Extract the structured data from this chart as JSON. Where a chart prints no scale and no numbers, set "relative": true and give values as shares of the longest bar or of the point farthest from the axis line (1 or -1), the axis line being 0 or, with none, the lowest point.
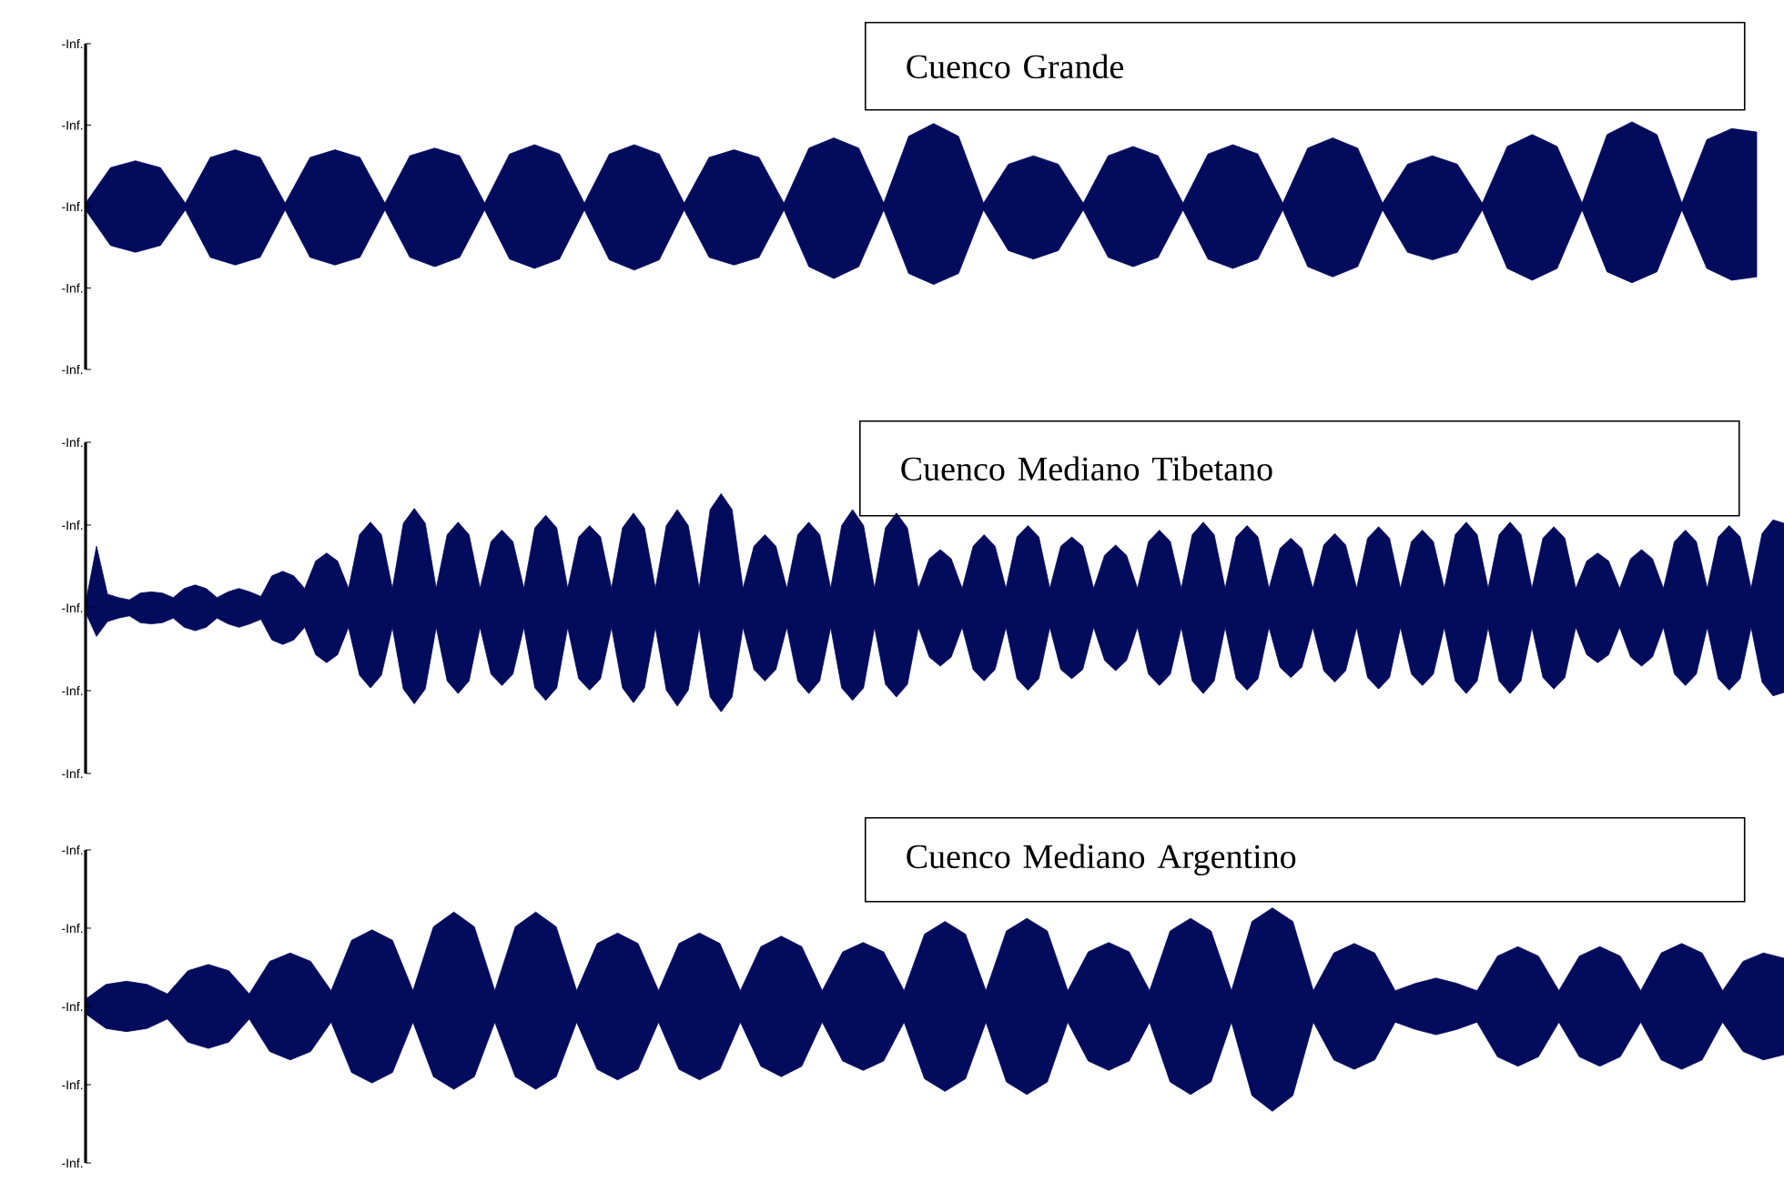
{
  "chart_data": [
    {
      "type": "area",
      "title": "Cuenco Grande",
      "relative": true,
      "annotations": [
        "-Inf.",
        "-Inf.",
        "-Inf.",
        "-Inf.",
        "-Inf."
      ],
      "categories": [
        null,
        null,
        null,
        null,
        null,
        null,
        null,
        null,
        null,
        null,
        null,
        null,
        null,
        null,
        null,
        null,
        null,
        null,
        null,
        null,
        null,
        null,
        null,
        null,
        null,
        null,
        null,
        null,
        null,
        null,
        null,
        null,
        null,
        null,
        null,
        null,
        null,
        null,
        null,
        null,
        null,
        null,
        null,
        null,
        null,
        null,
        null,
        null,
        null,
        null,
        null,
        null,
        null,
        null,
        null,
        null,
        null,
        null,
        null,
        null,
        null,
        null,
        null,
        null,
        null,
        null,
        null,
        null
      ],
      "series": [
        {
          "color": "#030b5c",
          "values": [
            0.04,
            0.46,
            0.54,
            0.46,
            0.04,
            0.58,
            0.67,
            0.58,
            0.04,
            0.58,
            0.67,
            0.58,
            0.04,
            0.6,
            0.69,
            0.6,
            0.04,
            0.62,
            0.73,
            0.62,
            0.04,
            0.62,
            0.73,
            0.62,
            0.04,
            0.58,
            0.67,
            0.58,
            0.04,
            0.69,
            0.81,
            0.69,
            0.04,
            0.83,
            0.98,
            0.83,
            0.04,
            0.5,
            0.6,
            0.5,
            0.04,
            0.6,
            0.71,
            0.6,
            0.04,
            0.62,
            0.73,
            0.62,
            0.04,
            0.69,
            0.81,
            0.69,
            0.04,
            0.5,
            0.6,
            0.5,
            0.04,
            0.71,
            0.85,
            0.71,
            0.04,
            0.85,
            1,
            0.85,
            0.04,
            0.79,
            0.92,
            0.88
          ]
        },
        {
          "color": "#030b5c",
          "values": [
            -0.04,
            -0.46,
            -0.54,
            -0.46,
            -0.04,
            -0.6,
            -0.69,
            -0.6,
            -0.04,
            -0.6,
            -0.69,
            -0.6,
            -0.04,
            -0.6,
            -0.71,
            -0.6,
            -0.04,
            -0.62,
            -0.73,
            -0.62,
            -0.04,
            -0.63,
            -0.75,
            -0.63,
            -0.04,
            -0.6,
            -0.69,
            -0.6,
            -0.04,
            -0.71,
            -0.85,
            -0.71,
            -0.04,
            -0.79,
            -0.92,
            -0.79,
            -0.04,
            -0.52,
            -0.62,
            -0.52,
            -0.04,
            -0.6,
            -0.71,
            -0.6,
            -0.04,
            -0.62,
            -0.73,
            -0.62,
            -0.04,
            -0.71,
            -0.83,
            -0.71,
            -0.04,
            -0.54,
            -0.63,
            -0.54,
            -0.04,
            -0.73,
            -0.87,
            -0.73,
            -0.04,
            -0.77,
            -0.9,
            -0.77,
            -0.04,
            -0.73,
            -0.87,
            -0.83
          ]
        }
      ]
    },
    {
      "type": "area",
      "title": "Cuenco Mediano Tibetano",
      "relative": true,
      "annotations": [
        "-Inf.",
        "-Inf.",
        "-Inf.",
        "-Inf.",
        "-Inf."
      ],
      "categories": [
        null,
        null,
        null,
        null,
        null,
        null,
        null,
        null,
        null,
        null,
        null,
        null,
        null,
        null,
        null,
        null,
        null,
        null,
        null,
        null,
        null,
        null,
        null,
        null,
        null,
        null,
        null,
        null,
        null,
        null,
        null,
        null,
        null,
        null,
        null,
        null,
        null,
        null,
        null,
        null,
        null,
        null,
        null,
        null,
        null,
        null,
        null,
        null,
        null,
        null,
        null,
        null,
        null,
        null,
        null,
        null,
        null,
        null,
        null,
        null,
        null,
        null,
        null,
        null,
        null,
        null,
        null,
        null,
        null,
        null,
        null,
        null,
        null,
        null,
        null,
        null,
        null,
        null,
        null,
        null,
        null,
        null,
        null,
        null,
        null,
        null,
        null,
        null,
        null,
        null,
        null,
        null,
        null,
        null,
        null,
        null,
        null,
        null,
        null,
        null,
        null,
        null,
        null,
        null,
        null,
        null,
        null,
        null,
        null,
        null,
        null,
        null,
        null,
        null,
        null,
        null,
        null,
        null,
        null,
        null,
        null,
        null,
        null,
        null,
        null,
        null,
        null,
        null,
        null,
        null,
        null,
        null,
        null,
        null,
        null,
        null,
        null,
        null,
        null,
        null,
        null,
        null,
        null,
        null,
        null,
        null,
        null,
        null,
        null,
        null,
        null,
        null,
        null,
        null,
        null,
        null
      ],
      "series": [
        {
          "color": "#030b5c",
          "values": [
            0.04,
            0.54,
            0.12,
            0.09,
            0.07,
            0.13,
            0.14,
            0.13,
            0.09,
            0.17,
            0.2,
            0.17,
            0.09,
            0.14,
            0.17,
            0.14,
            0.1,
            0.28,
            0.32,
            0.28,
            0.17,
            0.41,
            0.48,
            0.41,
            0.17,
            0.64,
            0.75,
            0.64,
            0.17,
            0.74,
            0.87,
            0.74,
            0.17,
            0.64,
            0.75,
            0.64,
            0.17,
            0.58,
            0.68,
            0.58,
            0.17,
            0.7,
            0.81,
            0.7,
            0.17,
            0.62,
            0.72,
            0.62,
            0.17,
            0.7,
            0.83,
            0.7,
            0.17,
            0.72,
            0.86,
            0.72,
            0.17,
            0.86,
            1,
            0.86,
            0.17,
            0.54,
            0.64,
            0.54,
            0.17,
            0.64,
            0.75,
            0.64,
            0.17,
            0.72,
            0.86,
            0.72,
            0.17,
            0.7,
            0.83,
            0.7,
            0.17,
            0.43,
            0.51,
            0.43,
            0.17,
            0.54,
            0.64,
            0.54,
            0.17,
            0.62,
            0.72,
            0.62,
            0.17,
            0.54,
            0.62,
            0.54,
            0.17,
            0.46,
            0.55,
            0.46,
            0.17,
            0.58,
            0.68,
            0.58,
            0.17,
            0.64,
            0.75,
            0.64,
            0.17,
            0.62,
            0.72,
            0.62,
            0.17,
            0.52,
            0.61,
            0.52,
            0.17,
            0.55,
            0.65,
            0.55,
            0.17,
            0.61,
            0.71,
            0.61,
            0.17,
            0.58,
            0.68,
            0.58,
            0.17,
            0.64,
            0.75,
            0.64,
            0.17,
            0.64,
            0.75,
            0.64,
            0.17,
            0.61,
            0.71,
            0.61,
            0.17,
            0.41,
            0.48,
            0.41,
            0.17,
            0.43,
            0.51,
            0.43,
            0.17,
            0.58,
            0.68,
            0.58,
            0.17,
            0.62,
            0.72,
            0.62,
            0.17,
            0.65,
            0.77,
            0.74
          ]
        },
        {
          "color": "#030b5c",
          "values": [
            -0.04,
            -0.25,
            -0.12,
            -0.09,
            -0.07,
            -0.13,
            -0.14,
            -0.13,
            -0.09,
            -0.17,
            -0.2,
            -0.17,
            -0.09,
            -0.14,
            -0.17,
            -0.14,
            -0.1,
            -0.28,
            -0.32,
            -0.28,
            -0.17,
            -0.41,
            -0.48,
            -0.41,
            -0.17,
            -0.59,
            -0.7,
            -0.59,
            -0.17,
            -0.71,
            -0.84,
            -0.71,
            -0.17,
            -0.64,
            -0.75,
            -0.64,
            -0.17,
            -0.58,
            -0.68,
            -0.58,
            -0.17,
            -0.7,
            -0.81,
            -0.7,
            -0.17,
            -0.62,
            -0.72,
            -0.62,
            -0.17,
            -0.7,
            -0.83,
            -0.7,
            -0.17,
            -0.72,
            -0.86,
            -0.72,
            -0.17,
            -0.78,
            -0.91,
            -0.78,
            -0.17,
            -0.54,
            -0.64,
            -0.54,
            -0.17,
            -0.64,
            -0.75,
            -0.64,
            -0.17,
            -0.7,
            -0.81,
            -0.7,
            -0.17,
            -0.67,
            -0.78,
            -0.67,
            -0.17,
            -0.43,
            -0.51,
            -0.43,
            -0.17,
            -0.54,
            -0.64,
            -0.54,
            -0.17,
            -0.62,
            -0.72,
            -0.62,
            -0.17,
            -0.54,
            -0.62,
            -0.54,
            -0.17,
            -0.46,
            -0.55,
            -0.46,
            -0.17,
            -0.58,
            -0.68,
            -0.58,
            -0.17,
            -0.64,
            -0.75,
            -0.64,
            -0.17,
            -0.62,
            -0.72,
            -0.62,
            -0.17,
            -0.52,
            -0.61,
            -0.52,
            -0.17,
            -0.55,
            -0.65,
            -0.55,
            -0.17,
            -0.61,
            -0.71,
            -0.61,
            -0.17,
            -0.58,
            -0.68,
            -0.58,
            -0.17,
            -0.64,
            -0.75,
            -0.64,
            -0.17,
            -0.64,
            -0.75,
            -0.64,
            -0.17,
            -0.61,
            -0.71,
            -0.61,
            -0.17,
            -0.41,
            -0.48,
            -0.41,
            -0.17,
            -0.43,
            -0.51,
            -0.43,
            -0.17,
            -0.58,
            -0.68,
            -0.58,
            -0.17,
            -0.62,
            -0.72,
            -0.62,
            -0.17,
            -0.65,
            -0.77,
            -0.74
          ]
        }
      ]
    },
    {
      "type": "area",
      "title": "Cuenco Mediano Argentino",
      "relative": true,
      "annotations": [
        "-Inf.",
        "-Inf.",
        "-Inf.",
        "-Inf.",
        "-Inf."
      ],
      "categories": [
        null,
        null,
        null,
        null,
        null,
        null,
        null,
        null,
        null,
        null,
        null,
        null,
        null,
        null,
        null,
        null,
        null,
        null,
        null,
        null,
        null,
        null,
        null,
        null,
        null,
        null,
        null,
        null,
        null,
        null,
        null,
        null,
        null,
        null,
        null,
        null,
        null,
        null,
        null,
        null,
        null,
        null,
        null,
        null,
        null,
        null,
        null,
        null,
        null,
        null,
        null,
        null,
        null,
        null,
        null,
        null,
        null,
        null,
        null,
        null,
        null,
        null,
        null,
        null,
        null,
        null,
        null,
        null,
        null,
        null,
        null,
        null,
        null,
        null,
        null,
        null,
        null,
        null,
        null,
        null,
        null,
        null,
        null,
        null
      ],
      "series": [
        {
          "color": "#030b5c",
          "values": [
            0.07,
            0.21,
            0.24,
            0.21,
            0.12,
            0.34,
            0.4,
            0.34,
            0.12,
            0.43,
            0.51,
            0.43,
            0.15,
            0.63,
            0.73,
            0.63,
            0.15,
            0.76,
            0.9,
            0.76,
            0.15,
            0.76,
            0.9,
            0.76,
            0.15,
            0.6,
            0.7,
            0.6,
            0.15,
            0.6,
            0.7,
            0.6,
            0.15,
            0.57,
            0.67,
            0.57,
            0.15,
            0.52,
            0.61,
            0.52,
            0.15,
            0.69,
            0.81,
            0.69,
            0.15,
            0.72,
            0.84,
            0.72,
            0.15,
            0.52,
            0.61,
            0.52,
            0.15,
            0.72,
            0.84,
            0.72,
            0.15,
            0.81,
            0.94,
            0.81,
            0.15,
            0.51,
            0.6,
            0.51,
            0.15,
            0.22,
            0.27,
            0.22,
            0.15,
            0.48,
            0.57,
            0.48,
            0.15,
            0.48,
            0.57,
            0.48,
            0.15,
            0.51,
            0.6,
            0.51,
            0.15,
            0.43,
            0.51,
            0.46
          ]
        },
        {
          "color": "#030b5c",
          "values": [
            -0.07,
            -0.21,
            -0.24,
            -0.21,
            -0.12,
            -0.34,
            -0.4,
            -0.34,
            -0.12,
            -0.43,
            -0.51,
            -0.43,
            -0.15,
            -0.63,
            -0.73,
            -0.63,
            -0.15,
            -0.67,
            -0.79,
            -0.67,
            -0.15,
            -0.67,
            -0.79,
            -0.67,
            -0.15,
            -0.6,
            -0.7,
            -0.6,
            -0.15,
            -0.6,
            -0.7,
            -0.6,
            -0.15,
            -0.57,
            -0.67,
            -0.57,
            -0.15,
            -0.52,
            -0.61,
            -0.52,
            -0.15,
            -0.69,
            -0.81,
            -0.69,
            -0.15,
            -0.72,
            -0.84,
            -0.72,
            -0.15,
            -0.52,
            -0.61,
            -0.52,
            -0.15,
            -0.72,
            -0.84,
            -0.72,
            -0.15,
            -0.85,
            -1,
            -0.85,
            -0.15,
            -0.51,
            -0.6,
            -0.51,
            -0.15,
            -0.22,
            -0.27,
            -0.22,
            -0.15,
            -0.48,
            -0.57,
            -0.48,
            -0.15,
            -0.48,
            -0.57,
            -0.48,
            -0.15,
            -0.51,
            -0.6,
            -0.51,
            -0.15,
            -0.43,
            -0.51,
            -0.46
          ]
        }
      ]
    }
  ]
}
